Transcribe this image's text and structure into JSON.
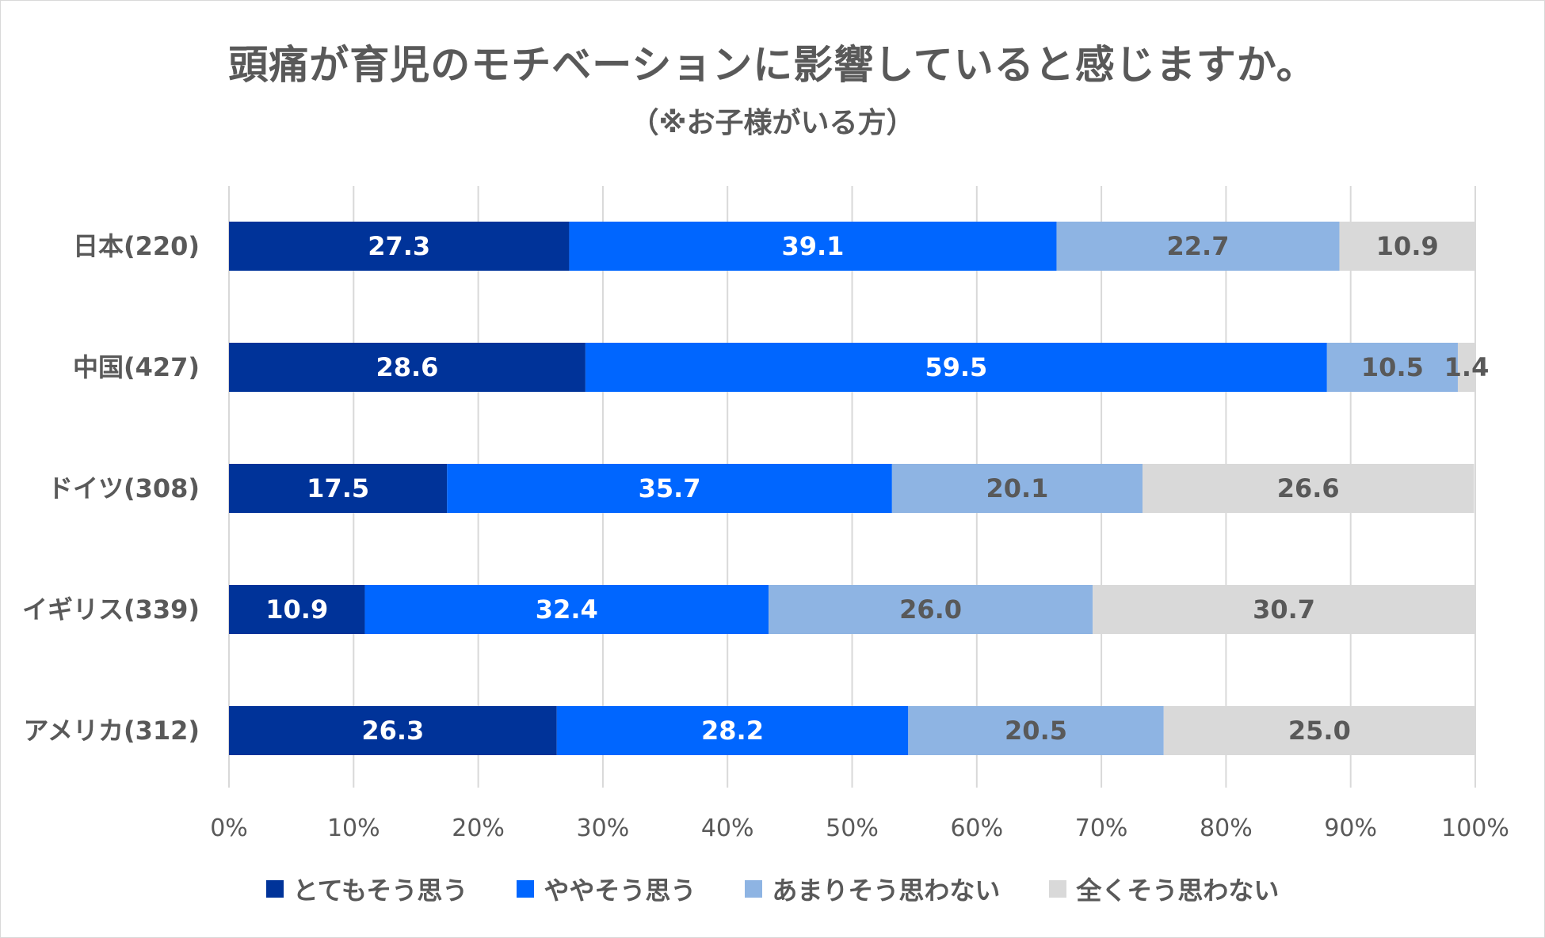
{
  "chart_data": {
    "type": "bar",
    "orientation": "horizontal",
    "stacked": true,
    "title": "頭痛が育児のモチベーションに影響していると感じますか。",
    "subtitle": "（※お子様がいる方）",
    "categories": [
      "日本(220)",
      "中国(427)",
      "ドイツ(308)",
      "イギリス(339)",
      "アメリカ(312)"
    ],
    "series": [
      {
        "name": "とてもそう思う",
        "color": "#003399",
        "label_color": "#ffffff",
        "values": [
          27.3,
          28.6,
          17.5,
          10.9,
          26.3
        ]
      },
      {
        "name": "ややそう思う",
        "color": "#0066ff",
        "label_color": "#ffffff",
        "values": [
          39.1,
          59.5,
          35.7,
          32.4,
          28.2
        ]
      },
      {
        "name": "あまりそう思わない",
        "color": "#8eb4e3",
        "label_color": "#595959",
        "values": [
          22.7,
          10.5,
          20.1,
          26.0,
          20.5
        ]
      },
      {
        "name": "全くそう思わない",
        "color": "#d9d9d9",
        "label_color": "#595959",
        "values": [
          10.9,
          1.4,
          26.6,
          30.7,
          25.0
        ]
      }
    ],
    "xlim": [
      0,
      100
    ],
    "x_ticks": [
      "0%",
      "10%",
      "20%",
      "30%",
      "40%",
      "50%",
      "60%",
      "70%",
      "80%",
      "90%",
      "100%"
    ],
    "grid": true,
    "legend_position": "bottom"
  }
}
